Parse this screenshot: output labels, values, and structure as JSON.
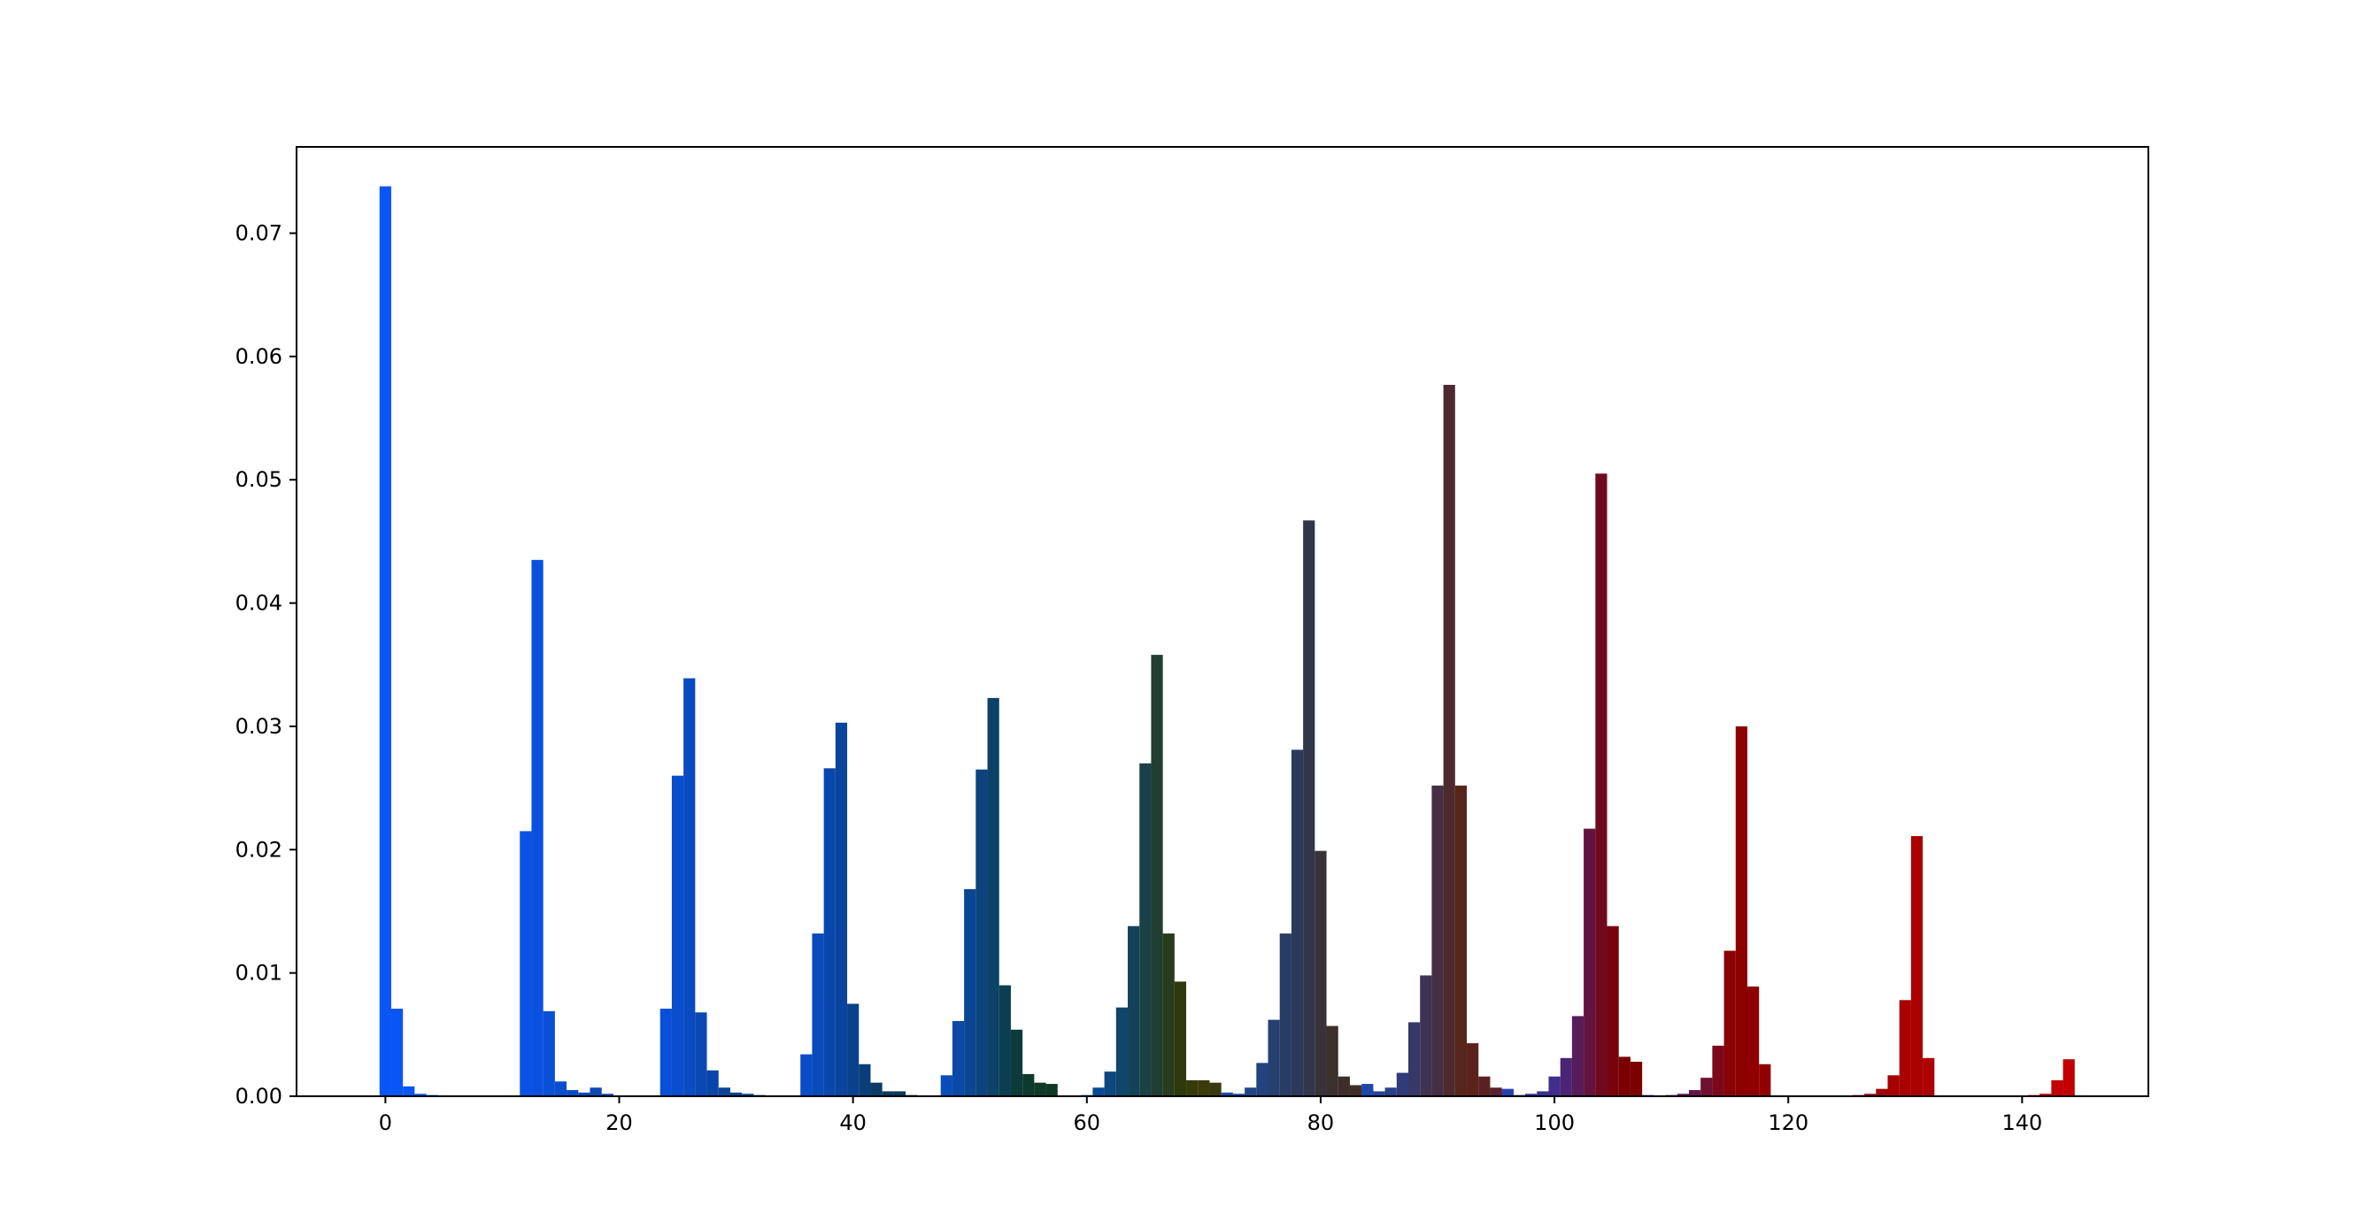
{
  "chart_data": {
    "type": "bar",
    "title": "",
    "xlabel": "",
    "ylabel": "",
    "xlim": [
      -7.6,
      150.8
    ],
    "ylim": [
      0,
      0.077
    ],
    "grid": false,
    "legend": "none",
    "xticks": [
      {
        "value": 0,
        "label": "0"
      },
      {
        "value": 20,
        "label": "20"
      },
      {
        "value": 40,
        "label": "40"
      },
      {
        "value": 60,
        "label": "60"
      },
      {
        "value": 80,
        "label": "80"
      },
      {
        "value": 100,
        "label": "100"
      },
      {
        "value": 120,
        "label": "120"
      },
      {
        "value": 140,
        "label": "140"
      }
    ],
    "yticks": [
      {
        "value": 0.0,
        "label": "0.00"
      },
      {
        "value": 0.01,
        "label": "0.01"
      },
      {
        "value": 0.02,
        "label": "0.02"
      },
      {
        "value": 0.03,
        "label": "0.03"
      },
      {
        "value": 0.04,
        "label": "0.04"
      },
      {
        "value": 0.05,
        "label": "0.05"
      },
      {
        "value": 0.06,
        "label": "0.06"
      },
      {
        "value": 0.07,
        "label": "0.07"
      }
    ],
    "groups": [
      {
        "start": 0,
        "values": [
          0.0738,
          0.0071,
          0.0008,
          0.0002,
          0.0001,
          0.0
        ]
      },
      {
        "start": 12,
        "values": [
          0.0215,
          0.0435,
          0.0069,
          0.0012,
          0.0005,
          0.0003,
          0.0007,
          0.0002
        ]
      },
      {
        "start": 24,
        "values": [
          0.0071,
          0.026,
          0.0339,
          0.0068,
          0.0021,
          0.0007,
          0.0003,
          0.0002,
          0.0001
        ]
      },
      {
        "start": 36,
        "values": [
          0.0034,
          0.0132,
          0.0266,
          0.0303,
          0.0075,
          0.0026,
          0.0011,
          0.0004,
          0.0004,
          0.0001
        ]
      },
      {
        "start": 48,
        "values": [
          0.0017,
          0.0061,
          0.0168,
          0.0265,
          0.0323,
          0.009,
          0.0054,
          0.0018,
          0.0011,
          0.001
        ]
      },
      {
        "start": 60,
        "values": [
          0.0001,
          0.0007,
          0.002,
          0.0072,
          0.0138,
          0.027,
          0.0358,
          0.0132,
          0.0093,
          0.0013,
          0.0013,
          0.0011
        ]
      },
      {
        "start": 72,
        "values": [
          0.0003,
          0.0002,
          0.0007,
          0.0027,
          0.0062,
          0.0132,
          0.0281,
          0.0467,
          0.0199,
          0.0057,
          0.0016,
          0.0009,
          0.0006
        ]
      },
      {
        "start": 84,
        "values": [
          0.001,
          0.0004,
          0.0007,
          0.0019,
          0.006,
          0.0098,
          0.0252,
          0.0577,
          0.0252,
          0.0043,
          0.0016,
          0.0007,
          0.0005
        ]
      },
      {
        "start": 96,
        "values": [
          0.0006,
          0.0001,
          0.0002,
          0.0004,
          0.0016,
          0.0031,
          0.0065,
          0.0217,
          0.0505,
          0.0138,
          0.0032,
          0.0028
        ]
      },
      {
        "start": 108,
        "values": [
          0.0001,
          0.0,
          0.0001,
          0.0002,
          0.0005,
          0.0015,
          0.0041,
          0.0118,
          0.03,
          0.0089,
          0.0026
        ]
      },
      {
        "start": 120,
        "values": [
          0.0,
          0.0,
          0.0,
          0.0,
          0.0,
          0.0,
          0.0001,
          0.0002,
          0.0006,
          0.0017,
          0.0078,
          0.0211,
          0.0031
        ]
      },
      {
        "start": 132,
        "values": [
          0.0,
          0.0,
          0.0,
          0.0,
          0.0,
          0.0,
          0.0,
          0.0,
          0.0,
          0.0001,
          0.0002,
          0.0013,
          0.003
        ]
      }
    ],
    "colors": {
      "start_blue": "#0a55f5",
      "teal": "#0a3a6a",
      "green": "#0e3a10",
      "olive": "#3a3a0a",
      "grey": "#333333",
      "brown": "#5a2310",
      "purple": "#5a1a5a",
      "red": "#7a0000",
      "bright_red": "#c20000"
    }
  }
}
